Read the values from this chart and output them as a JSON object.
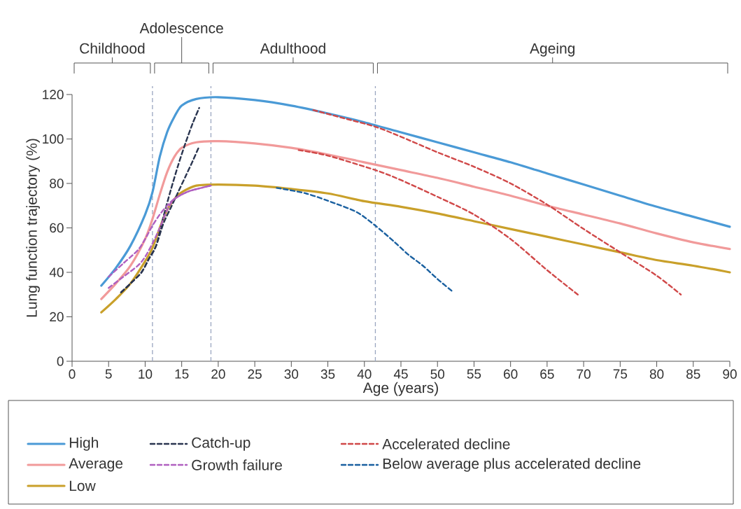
{
  "chart_data": {
    "type": "line",
    "xlabel": "Age (years)",
    "ylabel": "Lung function trajectory (%)",
    "xlim": [
      0,
      90
    ],
    "ylim": [
      0,
      120
    ],
    "xticks": [
      0,
      5,
      10,
      15,
      20,
      25,
      30,
      35,
      40,
      45,
      50,
      55,
      60,
      65,
      70,
      75,
      80,
      85,
      90
    ],
    "yticks": [
      0,
      20,
      40,
      60,
      80,
      100,
      120
    ],
    "legend": "bottom",
    "line_style": "solid",
    "ref_lines": [
      {
        "axis": "x",
        "value": 11,
        "color": "#9aa6c0",
        "line_style": "dashed"
      },
      {
        "axis": "x",
        "value": 19,
        "color": "#9aa6c0",
        "line_style": "dashed"
      },
      {
        "axis": "x",
        "value": 41.5,
        "color": "#9aa6c0",
        "line_style": "dashed"
      }
    ],
    "annotations": [
      "Childhood",
      "Adolescence",
      "Adulthood",
      "Ageing"
    ],
    "series": [
      {
        "name": "High",
        "color": "#4a9ad6",
        "x": [
          4,
          6,
          8,
          10,
          11,
          12,
          13,
          14,
          15,
          17,
          20,
          25,
          30,
          35,
          40,
          45,
          50,
          55,
          60,
          65,
          70,
          75,
          80,
          85,
          90
        ],
        "values": [
          34,
          42,
          52,
          66,
          76,
          92,
          103,
          110,
          115,
          118,
          118.8,
          117.5,
          115,
          111.5,
          107.5,
          103,
          98.5,
          94,
          89.5,
          84.5,
          79.5,
          74.5,
          69.5,
          65,
          60.5
        ]
      },
      {
        "name": "Average",
        "color": "#f19a9a",
        "x": [
          4,
          6,
          8,
          10,
          11,
          12,
          13,
          14,
          15,
          17,
          20,
          25,
          30,
          35,
          40,
          45,
          50,
          55,
          60,
          65,
          70,
          75,
          80,
          85,
          90
        ],
        "values": [
          28,
          35,
          43,
          55,
          64,
          75,
          85,
          92,
          96,
          98.5,
          99,
          98,
          96,
          93,
          89.5,
          86,
          82.5,
          78.5,
          74.5,
          70,
          66,
          62,
          57.5,
          53.5,
          50.5
        ]
      },
      {
        "name": "Low",
        "color": "#c9a02a",
        "x": [
          4,
          6,
          8,
          10,
          11,
          12,
          13,
          14,
          15,
          17,
          20,
          25,
          30,
          35,
          40,
          45,
          50,
          55,
          60,
          65,
          70,
          75,
          80,
          85,
          90
        ],
        "values": [
          22,
          28,
          35,
          45,
          51,
          60,
          68,
          73,
          76,
          79,
          79.5,
          79,
          77.5,
          75.5,
          72,
          69.5,
          66.5,
          63,
          59.5,
          56,
          52.5,
          49,
          45.5,
          43,
          40
        ]
      },
      {
        "name": "Catch-up",
        "color": "#2a3550",
        "line_style": "dashed",
        "x": [
          6.7,
          8,
          9.5,
          10.5,
          11.5,
          12.5,
          13.5,
          14.5,
          15.5,
          16.5,
          17.4
        ],
        "values": [
          31,
          35,
          40,
          46,
          52,
          65,
          77,
          88,
          98,
          107,
          114
        ]
      },
      {
        "color": "#2a3550",
        "line_style": "dashed",
        "x": [
          6.7,
          8,
          9.5,
          10.5,
          11.5,
          12.5,
          13.5,
          14.5,
          15.5,
          16.5,
          17.3
        ],
        "values": [
          31,
          35,
          40,
          46,
          52,
          62,
          69,
          76,
          83,
          90,
          96
        ]
      },
      {
        "name": "Growth failure",
        "color": "#b060c0",
        "line_style": "dashed",
        "x": [
          5,
          7,
          9,
          10,
          11,
          12,
          13,
          14,
          16,
          19
        ],
        "values": [
          38,
          44,
          50,
          55,
          61,
          66,
          70,
          73,
          76.5,
          79
        ]
      },
      {
        "color": "#b060c0",
        "line_style": "dashed",
        "x": [
          5,
          7,
          9,
          10,
          11,
          12,
          13,
          14,
          16,
          19
        ],
        "values": [
          33,
          38,
          43,
          47,
          53,
          60,
          68,
          73,
          76.5,
          79
        ]
      },
      {
        "name": "Accelerated decline",
        "color": "#d04848",
        "line_style": "dashed",
        "x": [
          33,
          37,
          41.5,
          45,
          50,
          55,
          60,
          65,
          70,
          75,
          80,
          83.3
        ],
        "values": [
          113,
          109.5,
          105.5,
          101,
          94,
          87.5,
          80,
          70.5,
          59.5,
          49,
          38.5,
          30
        ]
      },
      {
        "color": "#d04848",
        "line_style": "dashed",
        "x": [
          31,
          35,
          41.5,
          45,
          50,
          55,
          60,
          65,
          69.2
        ],
        "values": [
          95,
          92.5,
          86,
          81.5,
          74,
          66,
          55,
          41,
          30
        ]
      },
      {
        "name": "Below average plus accelerated decline",
        "color": "#1a60a0",
        "line_style": "dashed",
        "x": [
          28,
          32,
          36,
          39,
          41.5,
          44,
          46,
          48,
          50,
          52.2
        ],
        "values": [
          78,
          75.5,
          71,
          67,
          61,
          54,
          48,
          43,
          37,
          31
        ]
      }
    ]
  }
}
